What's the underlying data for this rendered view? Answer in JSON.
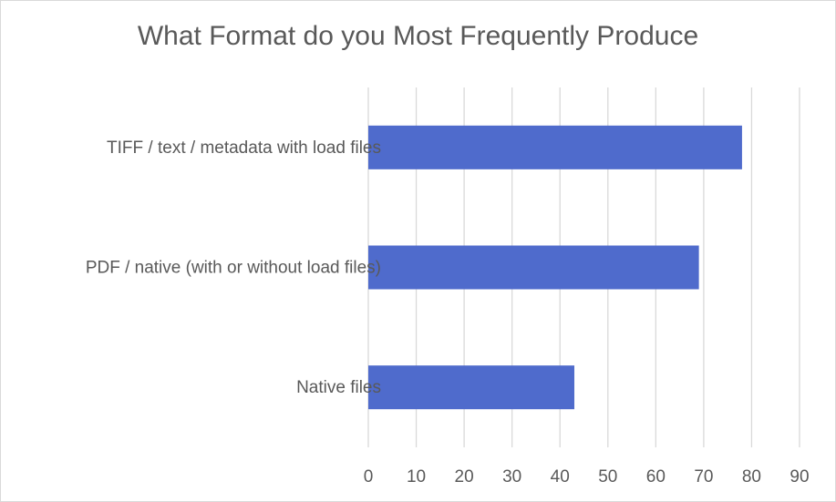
{
  "chart_data": {
    "type": "bar",
    "orientation": "horizontal",
    "title": "What Format do you Most Frequently Produce",
    "xlabel": "",
    "ylabel": "",
    "categories": [
      "TIFF / text / metadata with load files",
      "PDF / native (with or without load files)",
      "Native files"
    ],
    "values": [
      78,
      69,
      43
    ],
    "xlim": [
      0,
      90
    ],
    "xticks": [
      0,
      10,
      20,
      30,
      40,
      50,
      60,
      70,
      80,
      90
    ],
    "grid": "vertical",
    "legend": "none",
    "bar_color": "#4f6bcc",
    "grid_color": "#d9d9d9"
  }
}
